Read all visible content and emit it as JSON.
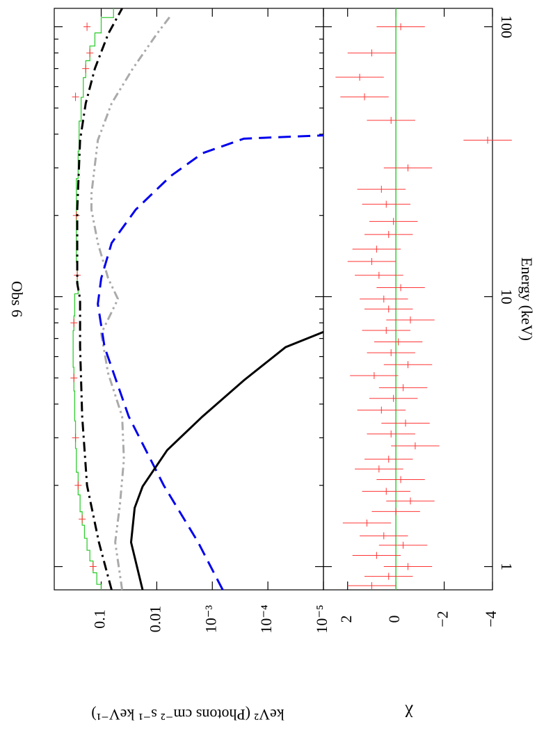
{
  "chart_data": [
    {
      "type": "line",
      "title": "Obs 6",
      "ylabel": "keV² (Photons cm⁻² s⁻¹ keV⁻¹)",
      "xlog": true,
      "ylog": true,
      "xlim": [
        0.82,
        117
      ],
      "ylim": [
        0.7,
        1e-05
      ],
      "xticks": [
        1,
        10,
        100
      ],
      "xminorticks": [
        2,
        3,
        4,
        5,
        6,
        7,
        8,
        9,
        20,
        30,
        40,
        50,
        60,
        70,
        80,
        90
      ],
      "yticks": [
        0.1,
        0.01,
        {
          "value": 0.001,
          "label": "10⁻³"
        },
        {
          "value": 0.0001,
          "label": "10⁻⁴"
        },
        {
          "value": 1e-05,
          "label": "10⁻⁵"
        }
      ],
      "series": [
        {
          "color": "#33cc33",
          "style": "step",
          "x": [
            0.82,
            0.9,
            1,
            1.1,
            1.2,
            1.35,
            1.5,
            1.7,
            2,
            2.5,
            3,
            4,
            5,
            6,
            7,
            8,
            9,
            10,
            10.5,
            12,
            15,
            20,
            25,
            30,
            40,
            50,
            60,
            70,
            80,
            90,
            100,
            117
          ],
          "values": [
            0.1,
            0.12,
            0.14,
            0.16,
            0.18,
            0.2,
            0.22,
            0.24,
            0.26,
            0.28,
            0.29,
            0.3,
            0.31,
            0.32,
            0.32,
            0.31,
            0.3,
            0.3,
            0.26,
            0.27,
            0.28,
            0.28,
            0.28,
            0.26,
            0.25,
            0.23,
            0.21,
            0.19,
            0.16,
            0.13,
            0.1,
            0.06
          ]
        },
        {
          "color": "#ff3333",
          "style": "cross",
          "x": [
            1,
            1.5,
            2,
            3,
            5,
            8,
            12,
            20,
            55,
            70,
            80,
            100
          ],
          "values": [
            0.14,
            0.22,
            0.26,
            0.29,
            0.31,
            0.31,
            0.27,
            0.28,
            0.29,
            0.19,
            0.16,
            0.18
          ]
        },
        {
          "color": "#000000",
          "style": "dash-dot",
          "x": [
            0.82,
            1.23,
            2,
            3.6,
            6.5,
            9.8,
            11.2,
            21,
            38,
            52,
            70,
            94,
            117
          ],
          "values": [
            0.065,
            0.11,
            0.18,
            0.22,
            0.24,
            0.24,
            0.27,
            0.27,
            0.24,
            0.19,
            0.13,
            0.075,
            0.042
          ]
        },
        {
          "color": "#aaaaaa",
          "style": "dash-dot-dot",
          "x": [
            0.82,
            1.23,
            1.7,
            2.5,
            3.6,
            5.2,
            7.3,
            9.8,
            11.7,
            15.8,
            21,
            24,
            38,
            52,
            70,
            94,
            110
          ],
          "values": [
            0.042,
            0.056,
            0.046,
            0.039,
            0.042,
            0.075,
            0.1,
            0.05,
            0.075,
            0.115,
            0.15,
            0.15,
            0.115,
            0.065,
            0.027,
            0.01,
            0.0056
          ]
        },
        {
          "color": "#0000ee",
          "style": "dash",
          "x": [
            0.82,
            1.23,
            2,
            3.6,
            6.5,
            9.4,
            11.7,
            15.8,
            21,
            28,
            34,
            38.5,
            39.6
          ],
          "values": [
            0.00065,
            0.0018,
            0.0075,
            0.032,
            0.087,
            0.115,
            0.1,
            0.065,
            0.024,
            0.0056,
            0.0015,
            0.00027,
            1e-05
          ]
        },
        {
          "color": "#000000",
          "style": "solid",
          "x": [
            0.82,
            1.23,
            1.65,
            1.98,
            2.7,
            3.6,
            4.9,
            6.5,
            7.4
          ],
          "values": [
            0.018,
            0.029,
            0.025,
            0.018,
            0.0065,
            0.0015,
            0.00027,
            4.8e-05,
            1e-05
          ]
        }
      ]
    },
    {
      "type": "scatter",
      "ylabel": "χ",
      "xlabel": "Energy (keV)",
      "xlog": true,
      "xlim": [
        0.82,
        117
      ],
      "ylim": [
        3,
        -4
      ],
      "xticks": [
        {
          "value": 1,
          "label": "1"
        },
        {
          "value": 10,
          "label": "10"
        },
        {
          "value": 100,
          "label": "100"
        }
      ],
      "yticks": [
        2,
        0,
        {
          "value": -2,
          "label": "−2"
        },
        {
          "value": -4,
          "label": "−4"
        }
      ],
      "reference_line": {
        "value": 0,
        "color": "#33cc33"
      },
      "color": "#ff3333",
      "x": [
        0.85,
        0.92,
        1.0,
        1.1,
        1.2,
        1.3,
        1.45,
        1.6,
        1.75,
        1.9,
        2.1,
        2.3,
        2.5,
        2.8,
        3.1,
        3.4,
        3.8,
        4.2,
        4.6,
        5.1,
        5.6,
        6.2,
        6.8,
        7.5,
        8.2,
        9.0,
        9.8,
        10.8,
        12,
        13.5,
        15,
        17,
        19,
        22,
        25,
        30,
        38,
        45,
        55,
        65,
        80,
        100
      ],
      "values": [
        1.0,
        0.3,
        -0.5,
        0.8,
        -0.3,
        0.5,
        1.2,
        0,
        -0.6,
        0.4,
        -0.2,
        0.7,
        0.3,
        -0.8,
        0.2,
        -0.4,
        0.6,
        0.1,
        -0.3,
        0.9,
        -0.5,
        0.2,
        -0.1,
        0.4,
        -0.6,
        0.3,
        0.5,
        -0.2,
        0.7,
        1.0,
        0.8,
        0.3,
        0.1,
        0.4,
        0.6,
        -0.5,
        -3.8,
        0.2,
        1.3,
        1.5,
        1.0,
        -0.2
      ],
      "errors": [
        1,
        1,
        1,
        1,
        1,
        1,
        1,
        1,
        1,
        1,
        1,
        1,
        1,
        1,
        1,
        1,
        1,
        1,
        1,
        1,
        1,
        1,
        1,
        1,
        1,
        1,
        1,
        1,
        1,
        1,
        1,
        1,
        1,
        1,
        1,
        1,
        1,
        1,
        1,
        1,
        1,
        1
      ]
    }
  ]
}
